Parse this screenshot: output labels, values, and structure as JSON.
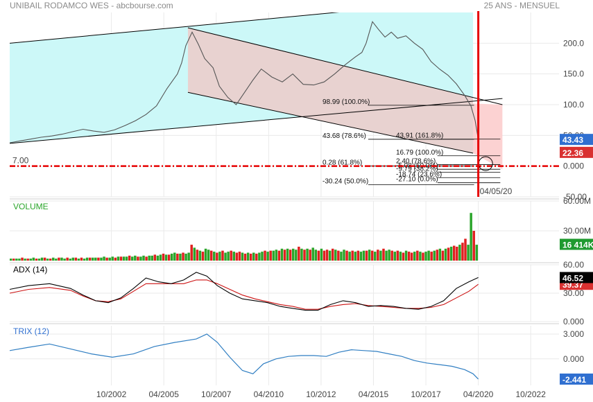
{
  "header": {
    "title": "UNIBAIL RODAMCO WES - abcbourse.com",
    "period": "25 ANS - MENSUEL"
  },
  "colors": {
    "channel_fill": "#ccf8f8",
    "down_channel_fill": "#e8d2d0",
    "projection_fill": "#fcd2d2",
    "price_line": "#555555",
    "marker_red": "#e60000",
    "vol_up": "#2aa52a",
    "vol_down": "#e02020",
    "adx_line": "#000000",
    "adx_signal": "#cc1111",
    "trix_line": "#2f7ec2",
    "tag_blue": "#2f6fd0",
    "tag_red": "#d93030",
    "tag_green": "#1f9a2f",
    "tag_black": "#000000",
    "grid": "#eaeaea"
  },
  "chart_data": [
    {
      "type": "line",
      "name": "price",
      "x_ticks": [
        "10/2002",
        "04/2005",
        "10/2007",
        "04/2010",
        "10/2012",
        "04/2015",
        "10/2017",
        "04/2020",
        "10/2022"
      ],
      "y_ticks": [
        "200.0",
        "150.0",
        "100.0",
        "50.00",
        "0.000",
        "-50.00"
      ],
      "ylim": [
        -50,
        250
      ],
      "xlim": [
        1997.9,
        2024.1
      ],
      "x": [
        1997.9,
        1998.4,
        1998.9,
        1999.4,
        1999.9,
        2000.4,
        2000.9,
        2001.4,
        2001.9,
        2002.4,
        2002.9,
        2003.4,
        2003.9,
        2004.4,
        2004.9,
        2005.4,
        2005.9,
        2006.1,
        2006.3,
        2006.6,
        2006.9,
        2007.2,
        2007.6,
        2007.9,
        2008.3,
        2008.7,
        2009.1,
        2009.5,
        2009.9,
        2010.4,
        2010.9,
        2011.4,
        2011.9,
        2012.4,
        2012.9,
        2013.4,
        2013.9,
        2014.4,
        2014.7,
        2014.9,
        2015.2,
        2015.5,
        2015.8,
        2016.1,
        2016.4,
        2016.8,
        2017.2,
        2017.6,
        2018.0,
        2018.4,
        2018.8,
        2019.2,
        2019.6,
        2019.9,
        2020.1,
        2020.25
      ],
      "values": [
        38,
        41,
        44,
        47,
        49,
        52,
        56,
        60,
        57,
        55,
        59,
        66,
        74,
        84,
        98,
        126,
        150,
        168,
        196,
        218,
        198,
        175,
        160,
        130,
        112,
        100,
        120,
        140,
        158,
        145,
        137,
        150,
        133,
        132,
        137,
        150,
        165,
        178,
        185,
        200,
        235,
        222,
        210,
        218,
        208,
        212,
        200,
        190,
        170,
        158,
        148,
        134,
        115,
        98,
        74,
        43.43
      ],
      "current_value": "43.43",
      "reference_value": "22.36",
      "reference_label": "7.00",
      "date_label": "04/05/20",
      "channels": [
        {
          "name": "bullish channel",
          "upper": [
            [
              1997.9,
              200
            ],
            [
              2015.0,
              255
            ]
          ],
          "lower": [
            [
              1997.9,
              37
            ],
            [
              2021.4,
              110
            ]
          ]
        },
        {
          "name": "bearish channel",
          "upper": [
            [
              2006.4,
              225
            ],
            [
              2021.4,
              100
            ]
          ],
          "lower": [
            [
              2006.4,
              120
            ],
            [
              2020.0,
              21
            ]
          ]
        }
      ],
      "fibonacci": [
        {
          "label": "98.99  (100.0%)",
          "value": 98.99
        },
        {
          "label": "43.68  (78.6%)",
          "value": 43.68
        },
        {
          "label": "43.91  (161.8%)",
          "value": 43.91
        },
        {
          "label": "16.79  (100.0%)",
          "value": 16.79
        },
        {
          "label": "2.40  (78.6%)",
          "value": 2.4
        },
        {
          "label": "0.28  (61.8%)",
          "value": 0.28
        },
        {
          "label": "-5.08  (50.0%)",
          "value": -5.08
        },
        {
          "label": "-9.79  (38.2%)",
          "value": -9.79
        },
        {
          "label": "-18.74  (23.6%)",
          "value": -18.74
        },
        {
          "label": "-27.10  (0.0%)",
          "value": -27.1
        },
        {
          "label": "-30.24  (50.0%)",
          "value": -30.24
        }
      ]
    },
    {
      "type": "bar",
      "name": "VOLUME",
      "y_ticks": [
        "60.00M",
        "30.00M"
      ],
      "ylim": [
        0,
        60
      ],
      "current_value": "16 414K",
      "values": [
        2,
        2,
        2,
        2,
        3,
        2,
        2,
        2,
        3,
        2,
        2,
        3,
        3,
        2,
        2,
        3,
        2,
        3,
        3,
        2,
        3,
        2,
        3,
        3,
        2,
        3,
        2,
        3,
        3,
        3,
        3,
        3,
        3,
        4,
        3,
        3,
        4,
        3,
        4,
        4,
        4,
        4,
        5,
        4,
        5,
        4,
        4,
        5,
        4,
        5,
        5,
        6,
        5,
        6,
        7,
        6,
        6,
        7,
        8,
        7,
        7,
        8,
        7,
        8,
        16,
        13,
        11,
        10,
        9,
        12,
        11,
        10,
        9,
        8,
        9,
        10,
        8,
        9,
        10,
        9,
        8,
        9,
        8,
        7,
        8,
        7,
        8,
        7,
        8,
        9,
        10,
        9,
        10,
        10,
        11,
        10,
        12,
        11,
        12,
        11,
        12,
        11,
        14,
        12,
        11,
        12,
        11,
        13,
        11,
        10,
        12,
        10,
        11,
        10,
        12,
        11,
        10,
        9,
        11,
        10,
        9,
        10,
        9,
        10,
        9,
        10,
        10,
        11,
        10,
        9,
        11,
        10,
        12,
        10,
        11,
        10,
        9,
        10,
        9,
        8,
        10,
        9,
        8,
        9,
        10,
        9,
        8,
        9,
        10,
        9,
        10,
        11,
        12,
        10,
        12,
        13,
        14,
        15,
        14,
        16,
        18,
        22,
        16,
        48,
        30,
        16
      ],
      "up": [
        1,
        0,
        1,
        1,
        0,
        1,
        0,
        1,
        1,
        0,
        1,
        1,
        0,
        1,
        0,
        1,
        1,
        0,
        1,
        1,
        0,
        1,
        1,
        0,
        1,
        0,
        1,
        1,
        0,
        1,
        1,
        0,
        1,
        1,
        0,
        1,
        1,
        0,
        1,
        0,
        1,
        1,
        0,
        1,
        1,
        0,
        1,
        1,
        0,
        1,
        1,
        0,
        1,
        1,
        0,
        1,
        0,
        1,
        1,
        0,
        1,
        0,
        1,
        1,
        0,
        1,
        0,
        1,
        0,
        1,
        1,
        0,
        1,
        0,
        1,
        0,
        1,
        1,
        0,
        1,
        0,
        0,
        1,
        0,
        1,
        0,
        1,
        0,
        1,
        1,
        0,
        1,
        0,
        1,
        1,
        0,
        1,
        0,
        1,
        0,
        1,
        1,
        0,
        1,
        0,
        1,
        0,
        1,
        1,
        0,
        1,
        0,
        0,
        1,
        0,
        1,
        0,
        1,
        1,
        0,
        1,
        0,
        1,
        0,
        1,
        1,
        0,
        1,
        0,
        1,
        0,
        1,
        0,
        1,
        1,
        0,
        1,
        0,
        1,
        0,
        1,
        0,
        0,
        1,
        0,
        1,
        0,
        1,
        1,
        0,
        1,
        0,
        1,
        0,
        1,
        0,
        1,
        0,
        0,
        1,
        0,
        0,
        1,
        1,
        0,
        1
      ]
    },
    {
      "type": "line",
      "name": "ADX (14)",
      "y_ticks": [
        "60.00",
        "30.00",
        "0.000"
      ],
      "ylim": [
        0,
        60
      ],
      "current_value": "46.52",
      "signal_value": "39.37",
      "x": [
        1997.9,
        1998.8,
        1999.8,
        2000.8,
        2001.4,
        2002.0,
        2002.6,
        2003.2,
        2003.8,
        2004.4,
        2005.0,
        2005.6,
        2006.2,
        2006.8,
        2007.3,
        2007.8,
        2008.4,
        2009.0,
        2009.6,
        2010.2,
        2010.8,
        2011.4,
        2012.0,
        2012.6,
        2013.2,
        2013.8,
        2014.4,
        2015.0,
        2015.6,
        2016.2,
        2016.8,
        2017.4,
        2018.0,
        2018.6,
        2019.2,
        2019.8,
        2020.25
      ],
      "values": [
        34,
        38,
        40,
        35,
        28,
        22,
        20,
        25,
        35,
        46,
        42,
        40,
        44,
        52,
        48,
        38,
        30,
        24,
        22,
        20,
        16,
        14,
        12,
        12,
        18,
        22,
        20,
        16,
        17,
        16,
        14,
        13,
        16,
        22,
        35,
        42,
        46.52
      ],
      "signal": [
        30,
        34,
        36,
        33,
        27,
        22,
        21,
        24,
        32,
        40,
        40,
        40,
        40,
        44,
        44,
        40,
        34,
        28,
        24,
        21,
        18,
        16,
        13,
        13,
        16,
        18,
        19,
        17,
        16,
        15,
        14,
        14,
        15,
        18,
        25,
        32,
        39.37
      ]
    },
    {
      "type": "line",
      "name": "TRIX (12)",
      "y_ticks": [
        "3.000",
        "0.000"
      ],
      "ylim": [
        -3.2,
        4.0
      ],
      "current_value": "-2.441",
      "x": [
        1997.9,
        1998.8,
        1999.8,
        2000.8,
        2001.8,
        2002.8,
        2003.8,
        2004.8,
        2005.8,
        2006.8,
        2007.3,
        2007.8,
        2008.4,
        2009.0,
        2009.5,
        2010.0,
        2010.6,
        2011.2,
        2011.8,
        2012.4,
        2013.0,
        2013.6,
        2014.2,
        2014.8,
        2015.4,
        2016.0,
        2016.6,
        2017.2,
        2017.8,
        2018.4,
        2019.0,
        2019.6,
        2020.0,
        2020.25
      ],
      "values": [
        1.0,
        1.4,
        1.8,
        1.2,
        0.6,
        0.2,
        0.6,
        1.5,
        2.0,
        2.4,
        3.0,
        2.0,
        0.2,
        -1.4,
        -1.8,
        -0.6,
        0.0,
        0.3,
        0.4,
        0.4,
        0.3,
        0.8,
        1.1,
        1.0,
        0.9,
        0.6,
        0.3,
        -0.2,
        -0.5,
        -0.7,
        -0.9,
        -1.3,
        -1.8,
        -2.441
      ]
    }
  ]
}
